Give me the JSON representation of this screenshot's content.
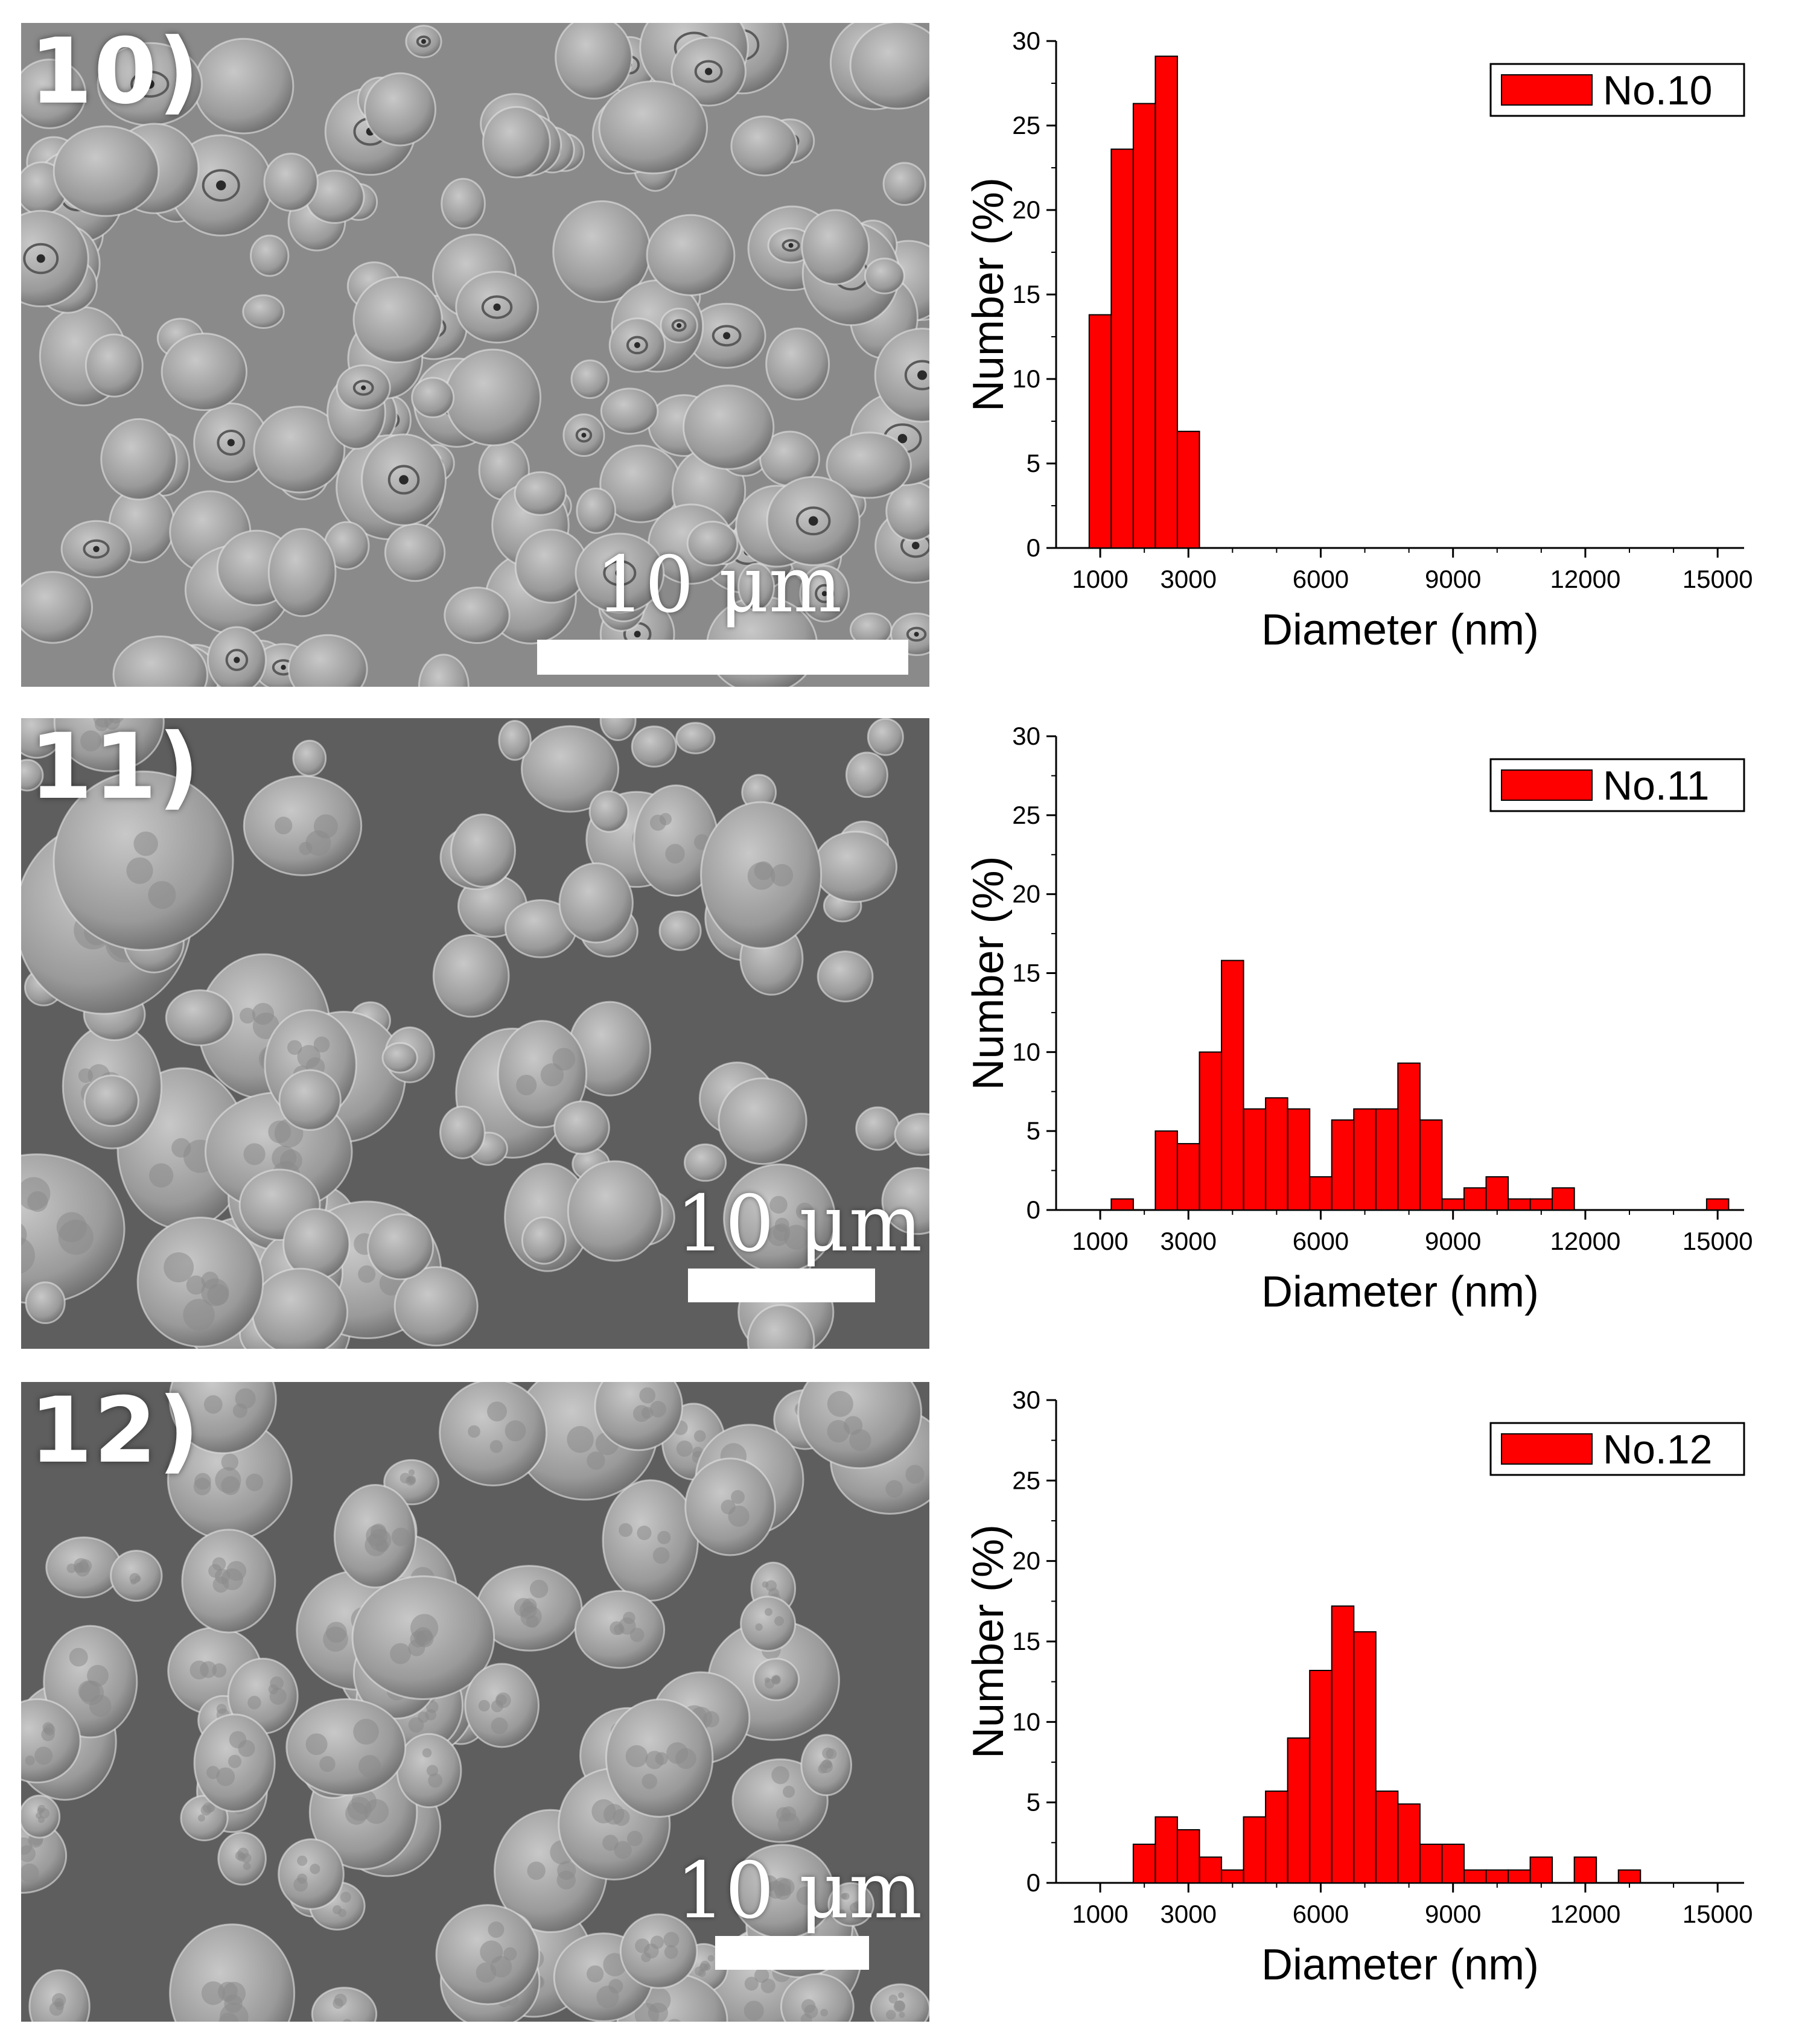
{
  "panels": [
    {
      "label": "10)",
      "scale_bar_text": "10 μm",
      "chart_data": {
        "type": "bar",
        "xlabel": "Diameter (nm)",
        "ylabel": "Number (%)",
        "xlim": [
          0,
          15600
        ],
        "ylim": [
          0,
          30
        ],
        "x_ticks": [
          "1000",
          "3000",
          "6000",
          "9000",
          "12000",
          "15000"
        ],
        "x_tick_values": [
          1000,
          3000,
          6000,
          9000,
          12000,
          15000
        ],
        "y_ticks": [
          "0",
          "5",
          "10",
          "15",
          "20",
          "25",
          "30"
        ],
        "legend": "top-right",
        "series": [
          {
            "name": "No.10",
            "color": "#ff0000",
            "x": [
              1000,
              1500,
              2000,
              2500,
              3000
            ],
            "values": [
              13.8,
              23.6,
              26.3,
              29.1,
              6.9
            ]
          }
        ]
      }
    },
    {
      "label": "11)",
      "scale_bar_text": "10 μm",
      "chart_data": {
        "type": "bar",
        "xlabel": "Diameter (nm)",
        "ylabel": "Number (%)",
        "xlim": [
          0,
          15600
        ],
        "ylim": [
          0,
          30
        ],
        "x_ticks": [
          "1000",
          "3000",
          "6000",
          "9000",
          "12000",
          "15000"
        ],
        "x_tick_values": [
          1000,
          3000,
          6000,
          9000,
          12000,
          15000
        ],
        "y_ticks": [
          "0",
          "5",
          "10",
          "15",
          "20",
          "25",
          "30"
        ],
        "legend": "top-right",
        "series": [
          {
            "name": "No.11",
            "color": "#ff0000",
            "x": [
              1500,
              2000,
              2500,
              3000,
              3500,
              4000,
              4500,
              5000,
              5500,
              6000,
              6500,
              7000,
              7500,
              8000,
              8500,
              9000,
              9500,
              10000,
              10500,
              11000,
              11500,
              12000,
              12500,
              13000,
              13500,
              14000,
              14500,
              15000
            ],
            "values": [
              0.7,
              0,
              5.0,
              4.2,
              10.0,
              15.8,
              6.4,
              7.1,
              6.4,
              2.1,
              5.7,
              6.4,
              6.4,
              9.3,
              5.7,
              0.7,
              1.4,
              2.1,
              0.7,
              0.7,
              1.4,
              0,
              0,
              0,
              0,
              0,
              0,
              0.7
            ]
          }
        ]
      }
    },
    {
      "label": "12)",
      "scale_bar_text": "10 μm",
      "chart_data": {
        "type": "bar",
        "xlabel": "Diameter (nm)",
        "ylabel": "Number (%)",
        "xlim": [
          0,
          15600
        ],
        "ylim": [
          0,
          30
        ],
        "x_ticks": [
          "1000",
          "3000",
          "6000",
          "9000",
          "12000",
          "15000"
        ],
        "x_tick_values": [
          1000,
          3000,
          6000,
          9000,
          12000,
          15000
        ],
        "y_ticks": [
          "0",
          "5",
          "10",
          "15",
          "20",
          "25",
          "30"
        ],
        "legend": "top-right",
        "series": [
          {
            "name": "No.12",
            "color": "#ff0000",
            "x": [
              2000,
              2500,
              3000,
              3500,
              4000,
              4500,
              5000,
              5500,
              6000,
              6500,
              7000,
              7500,
              8000,
              8500,
              9000,
              9500,
              10000,
              10500,
              11000,
              11500,
              12000,
              12500,
              13000
            ],
            "values": [
              2.4,
              4.1,
              3.3,
              1.6,
              0.8,
              4.1,
              5.7,
              9.0,
              13.2,
              17.2,
              15.6,
              5.7,
              4.9,
              2.4,
              2.4,
              0.8,
              0.8,
              0.8,
              1.6,
              0,
              1.6,
              0,
              0.8
            ]
          }
        ]
      }
    }
  ]
}
